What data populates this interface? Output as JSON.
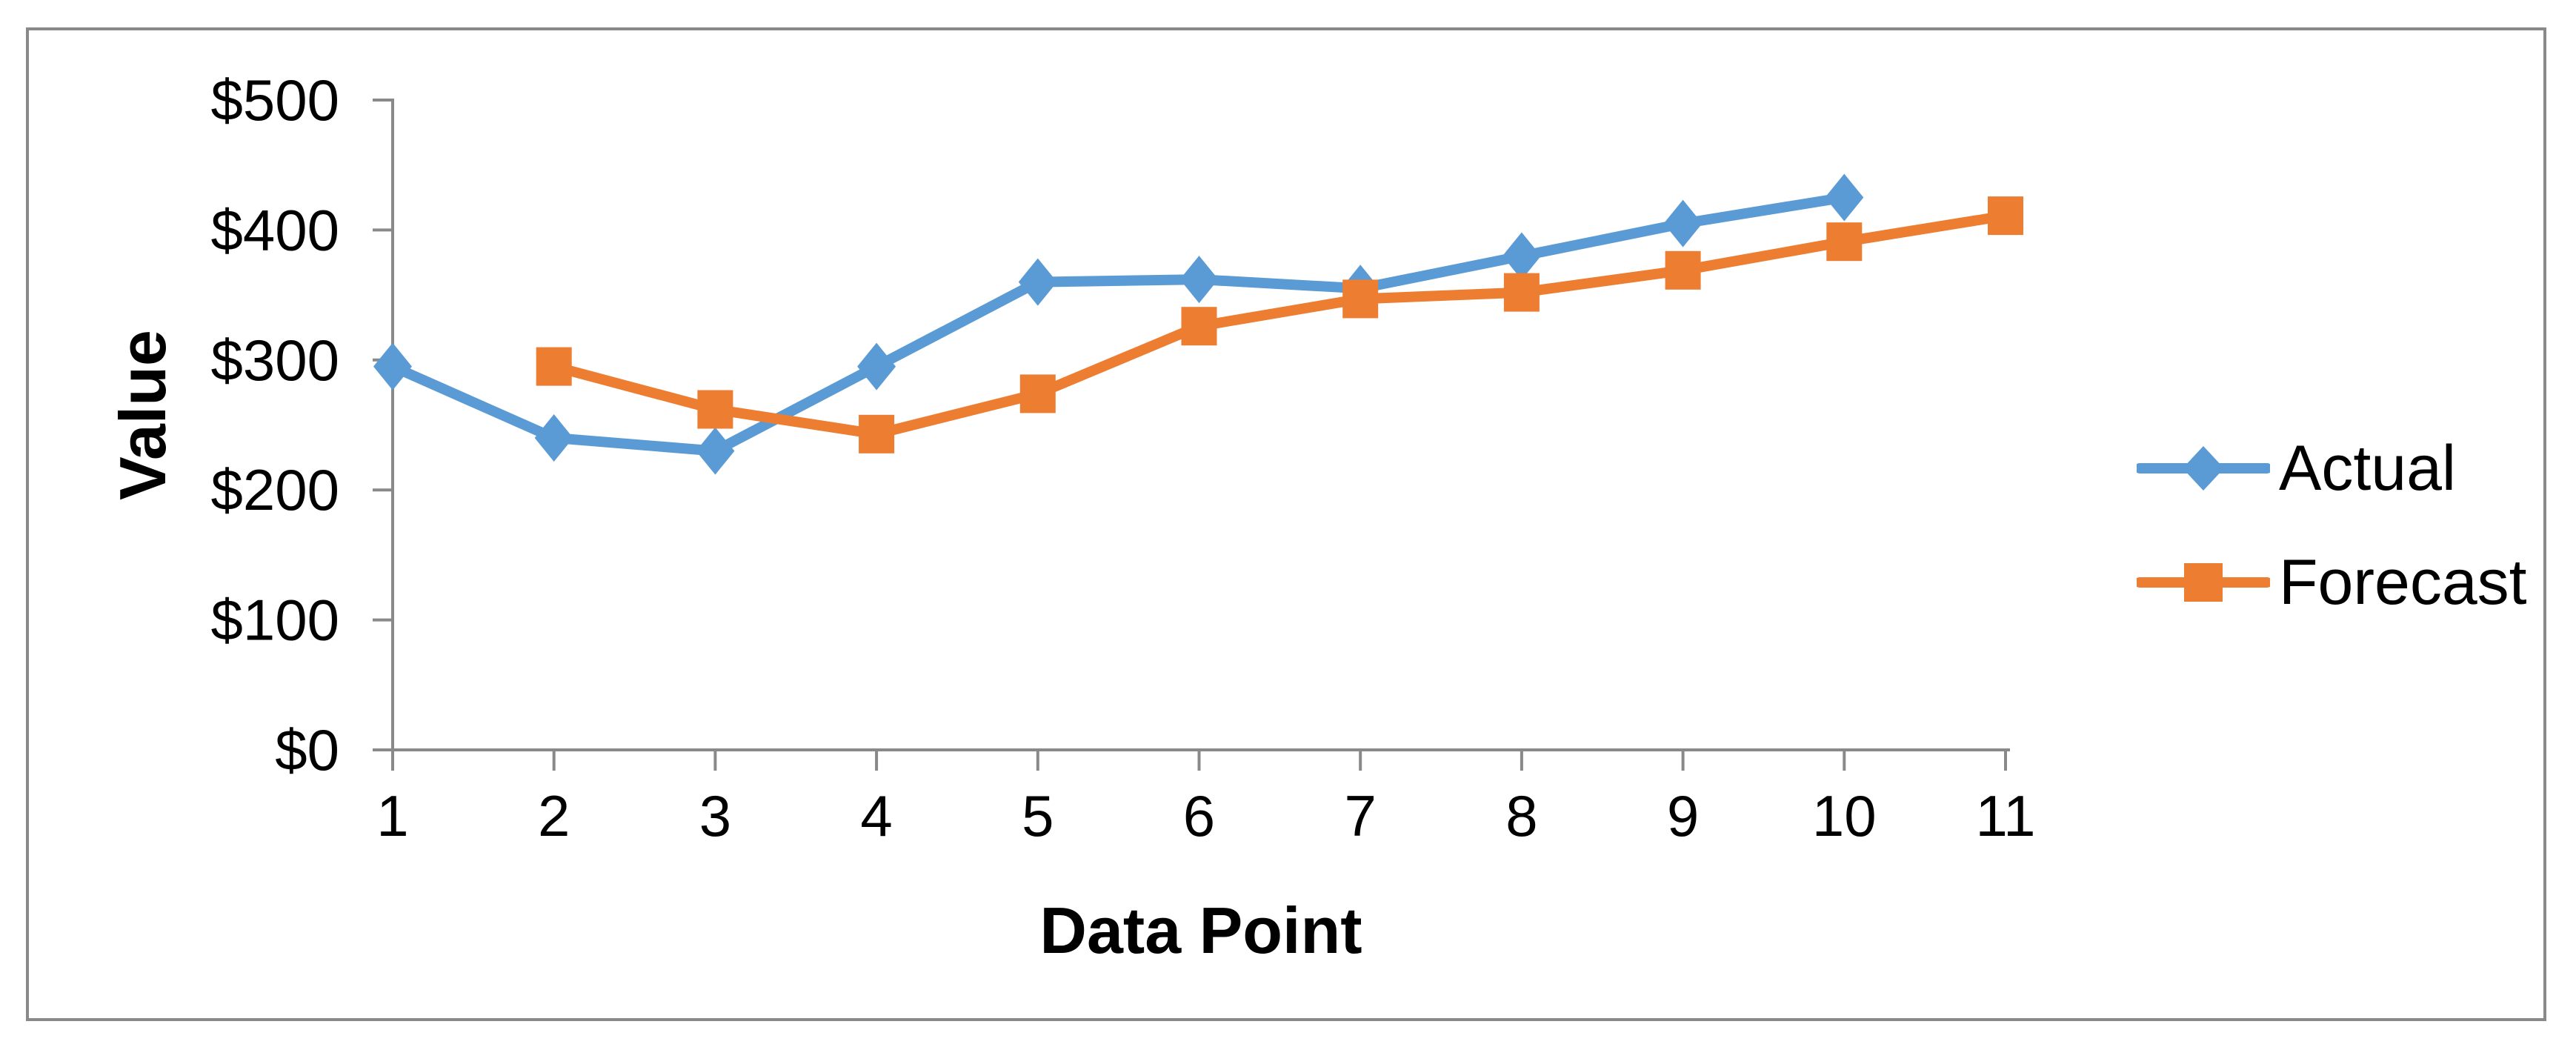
{
  "chart_data": {
    "type": "line",
    "title": "",
    "xlabel": "Data Point",
    "ylabel": "Value",
    "x": [
      1,
      2,
      3,
      4,
      5,
      6,
      7,
      8,
      9,
      10,
      11
    ],
    "x_ticks": [
      "1",
      "2",
      "3",
      "4",
      "5",
      "6",
      "7",
      "8",
      "9",
      "10",
      "11"
    ],
    "y_ticks": [
      "$0",
      "$100",
      "$200",
      "$300",
      "$400",
      "$500"
    ],
    "y_tick_values": [
      0,
      100,
      200,
      300,
      400,
      500
    ],
    "ylim": [
      0,
      500
    ],
    "grid": false,
    "legend_position": "right",
    "series": [
      {
        "name": "Actual",
        "color": "#5B9BD5",
        "marker": "diamond",
        "values": [
          295,
          240,
          230,
          295,
          360,
          362,
          355,
          380,
          405,
          425,
          null
        ]
      },
      {
        "name": "Forecast",
        "color": "#ED7D31",
        "marker": "square",
        "values": [
          null,
          295,
          262,
          243,
          274,
          326,
          347,
          352,
          369,
          391,
          411
        ]
      }
    ]
  },
  "axes": {
    "x_title": "Data Point",
    "y_title": "Value"
  },
  "legend": {
    "items": [
      {
        "label": "Actual"
      },
      {
        "label": "Forecast"
      }
    ]
  },
  "colors": {
    "actual": "#5B9BD5",
    "forecast": "#ED7D31",
    "axis": "#898989",
    "border": "#898989",
    "text": "#000000"
  }
}
